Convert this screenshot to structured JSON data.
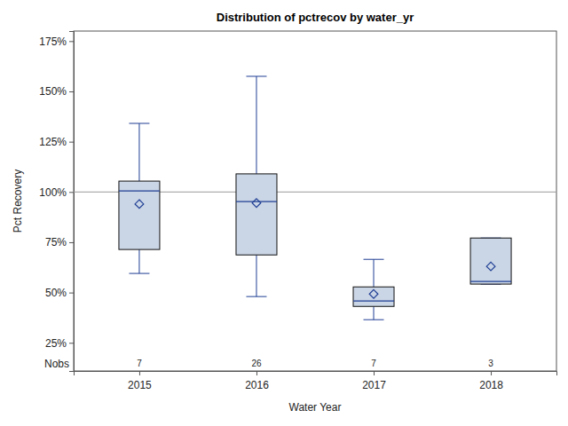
{
  "chart_data": {
    "type": "box",
    "title": "Distribution of pctrecov by water_yr",
    "x_label": "Water Year",
    "y_label": "Pct Recovery",
    "categories": [
      "2015",
      "2016",
      "2017",
      "2018"
    ],
    "min": [
      59.5,
      48,
      36.5,
      54.2
    ],
    "q1": [
      71.4,
      68.7,
      43.1,
      54.2
    ],
    "median": [
      100.5,
      95.2,
      45.8,
      55.5
    ],
    "q3": [
      105.4,
      109,
      52.8,
      77.1
    ],
    "max": [
      134.1,
      157.5,
      66.5,
      77.1
    ],
    "mean": [
      94,
      94.5,
      49.3,
      63
    ],
    "nobs_label": "Nobs",
    "nobs": [
      7,
      26,
      7,
      3
    ],
    "reference_line": 100,
    "color": "#cad5e5",
    "ylim": [
      11,
      180
    ],
    "yticks": [
      {
        "value": 25,
        "label": "25%"
      },
      {
        "value": 50,
        "label": "50%"
      },
      {
        "value": 75,
        "label": "75%"
      },
      {
        "value": 100,
        "label": "100%"
      },
      {
        "value": 125,
        "label": "125%"
      },
      {
        "value": 150,
        "label": "150%"
      },
      {
        "value": 175,
        "label": "175%"
      }
    ]
  }
}
